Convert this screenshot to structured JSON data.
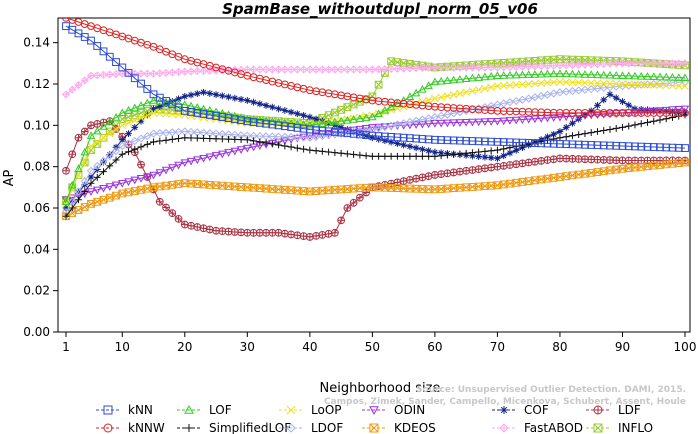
{
  "chart_data": {
    "type": "line",
    "title": "SpamBase_withoutdupl_norm_05_v06",
    "xlabel": "Neighborhood size",
    "ylabel": "AP",
    "xlim": [
      1,
      100
    ],
    "ylim": [
      0,
      0.15
    ],
    "xticks": [
      "1",
      "10",
      "20",
      "30",
      "40",
      "50",
      "60",
      "70",
      "80",
      "90",
      "100"
    ],
    "yticks": [
      "0.00",
      "0.02",
      "0.04",
      "0.06",
      "0.08",
      "0.10",
      "0.12",
      "0.14"
    ],
    "legend_position": "bottom",
    "watermark": [
      "Source: Unsupervised Outlier Detection. DAMI, 2015.",
      "Campos, Zimek, Sander, Campello, Micenkova, Schubert, Assent, Houle"
    ],
    "series": [
      {
        "name": "kNN",
        "color": "#2c4bd6",
        "marker": "square",
        "x": [
          1,
          5,
          10,
          15,
          20,
          30,
          40,
          50,
          60,
          70,
          80,
          90,
          100
        ],
        "y": [
          0.148,
          0.141,
          0.128,
          0.115,
          0.107,
          0.102,
          0.098,
          0.095,
          0.093,
          0.092,
          0.091,
          0.09,
          0.089
        ]
      },
      {
        "name": "kNNW",
        "color": "#dd2222",
        "marker": "circle",
        "x": [
          1,
          5,
          10,
          15,
          20,
          30,
          40,
          50,
          60,
          70,
          80,
          90,
          100
        ],
        "y": [
          0.152,
          0.148,
          0.143,
          0.138,
          0.132,
          0.124,
          0.117,
          0.112,
          0.109,
          0.107,
          0.106,
          0.106,
          0.106
        ]
      },
      {
        "name": "LOF",
        "color": "#33cc22",
        "marker": "triangle-up",
        "x": [
          1,
          5,
          10,
          15,
          20,
          30,
          40,
          50,
          55,
          60,
          70,
          80,
          90,
          100
        ],
        "y": [
          0.063,
          0.095,
          0.106,
          0.112,
          0.11,
          0.103,
          0.1,
          0.104,
          0.112,
          0.121,
          0.124,
          0.125,
          0.124,
          0.123
        ]
      },
      {
        "name": "SimplifiedLOF",
        "color": "#111111",
        "marker": "plus",
        "x": [
          1,
          5,
          10,
          15,
          20,
          30,
          40,
          50,
          60,
          70,
          80,
          90,
          100
        ],
        "y": [
          0.056,
          0.072,
          0.086,
          0.092,
          0.094,
          0.093,
          0.088,
          0.085,
          0.085,
          0.088,
          0.094,
          0.099,
          0.105
        ]
      },
      {
        "name": "LoOP",
        "color": "#f0e020",
        "marker": "x",
        "x": [
          1,
          5,
          10,
          15,
          20,
          30,
          40,
          50,
          60,
          70,
          80,
          90,
          100
        ],
        "y": [
          0.062,
          0.09,
          0.1,
          0.106,
          0.105,
          0.101,
          0.1,
          0.105,
          0.113,
          0.119,
          0.121,
          0.12,
          0.119
        ]
      },
      {
        "name": "LDOF",
        "color": "#aab2ee",
        "marker": "diamond",
        "x": [
          1,
          5,
          10,
          15,
          20,
          30,
          40,
          50,
          60,
          70,
          80,
          90,
          100
        ],
        "y": [
          0.058,
          0.078,
          0.09,
          0.096,
          0.097,
          0.095,
          0.094,
          0.098,
          0.104,
          0.11,
          0.116,
          0.119,
          0.121
        ]
      },
      {
        "name": "ODIN",
        "color": "#9933dd",
        "marker": "triangle-down",
        "x": [
          1,
          5,
          10,
          15,
          20,
          30,
          40,
          50,
          60,
          70,
          80,
          90,
          100
        ],
        "y": [
          0.064,
          0.068,
          0.072,
          0.076,
          0.082,
          0.089,
          0.095,
          0.099,
          0.101,
          0.102,
          0.104,
          0.106,
          0.108
        ]
      },
      {
        "name": "KDEOS",
        "color": "#ee9911",
        "marker": "square-x",
        "x": [
          1,
          5,
          10,
          15,
          20,
          30,
          40,
          50,
          60,
          70,
          80,
          90,
          100
        ],
        "y": [
          0.056,
          0.062,
          0.067,
          0.07,
          0.072,
          0.07,
          0.068,
          0.07,
          0.069,
          0.071,
          0.075,
          0.079,
          0.082
        ]
      },
      {
        "name": "COF",
        "color": "#112288",
        "marker": "asterisk",
        "x": [
          1,
          5,
          10,
          15,
          20,
          23,
          30,
          40,
          50,
          60,
          70,
          80,
          85,
          88,
          92,
          100
        ],
        "y": [
          0.06,
          0.075,
          0.093,
          0.108,
          0.114,
          0.116,
          0.112,
          0.104,
          0.094,
          0.087,
          0.084,
          0.097,
          0.107,
          0.115,
          0.108,
          0.106
        ]
      },
      {
        "name": "FastABOD",
        "color": "#ffaaee",
        "marker": "diamond-plus",
        "x": [
          1,
          5,
          10,
          15,
          20,
          30,
          40,
          50,
          60,
          70,
          80,
          90,
          100
        ],
        "y": [
          0.115,
          0.124,
          0.125,
          0.125,
          0.126,
          0.127,
          0.127,
          0.127,
          0.128,
          0.128,
          0.129,
          0.13,
          0.13
        ]
      },
      {
        "name": "LDF",
        "color": "#aa3344",
        "marker": "circle-plus",
        "x": [
          1,
          3,
          5,
          8,
          12,
          16,
          20,
          25,
          30,
          35,
          40,
          44,
          46,
          50,
          60,
          70,
          80,
          90,
          100
        ],
        "y": [
          0.078,
          0.094,
          0.1,
          0.102,
          0.087,
          0.063,
          0.052,
          0.049,
          0.048,
          0.048,
          0.046,
          0.048,
          0.06,
          0.07,
          0.076,
          0.08,
          0.084,
          0.083,
          0.083
        ]
      },
      {
        "name": "INFLO",
        "color": "#99cc33",
        "marker": "hourglass",
        "x": [
          1,
          5,
          10,
          15,
          20,
          30,
          40,
          50,
          53,
          60,
          70,
          80,
          90,
          100
        ],
        "y": [
          0.064,
          0.088,
          0.103,
          0.108,
          0.107,
          0.103,
          0.101,
          0.114,
          0.131,
          0.128,
          0.13,
          0.132,
          0.131,
          0.129
        ]
      }
    ]
  }
}
